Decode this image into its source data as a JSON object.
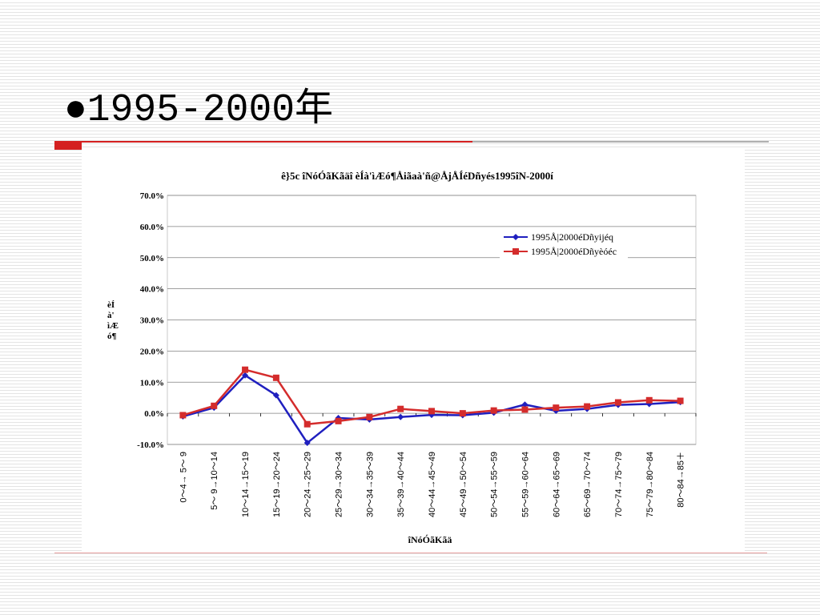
{
  "slide": {
    "title": "●1995-2000年"
  },
  "chart_data": {
    "type": "line",
    "title": "ê}5c îNóÓãKãäî èÍà'ìÆó¶Åiãaà'ñ@ÅjÅÍéDñyés1995îN-2000í",
    "xlabel": "îNóÓãKãä",
    "ylabel": "èÍà'ìÆó¶",
    "ylim": [
      -10.0,
      70.0
    ],
    "yticks": [
      "70.0%",
      "60.0%",
      "50.0%",
      "40.0%",
      "30.0%",
      "20.0%",
      "10.0%",
      "0.0%",
      "-10.0%"
    ],
    "yticks_values": [
      70,
      60,
      50,
      40,
      30,
      20,
      10,
      0,
      -10
    ],
    "grid": true,
    "legend_position": "top-right",
    "categories": [
      "0～4→ 5～ 9",
      "5～ 9→10～14",
      "10～14→15～19",
      "15～19→20～24",
      "20～24→25～29",
      "25～29→30～34",
      "30～34→35～39",
      "35～39→40～44",
      "40～44→45～49",
      "45～49→50～54",
      "50～54→55～59",
      "55～59→60～64",
      "60～64→65～69",
      "65～69→70～74",
      "70～74→75～79",
      "75～79→80～84",
      "80～84→85＋"
    ],
    "series": [
      {
        "name": "1995Å|2000éDñyijéq",
        "color": "#1f1fbf",
        "marker": "diamond",
        "values": [
          -1.0,
          1.8,
          12.2,
          5.8,
          -9.5,
          -1.5,
          -2.0,
          -1.2,
          -0.5,
          -0.6,
          0.2,
          2.8,
          0.8,
          1.4,
          2.7,
          3.0,
          3.6
        ]
      },
      {
        "name": "1995Å|2000éDñyèóéc",
        "color": "#d42c2c",
        "marker": "square",
        "values": [
          -0.6,
          2.4,
          14.0,
          11.4,
          -3.5,
          -2.5,
          -1.2,
          1.4,
          0.7,
          0.0,
          0.9,
          1.2,
          1.8,
          2.2,
          3.5,
          4.2,
          4.0
        ]
      }
    ]
  }
}
